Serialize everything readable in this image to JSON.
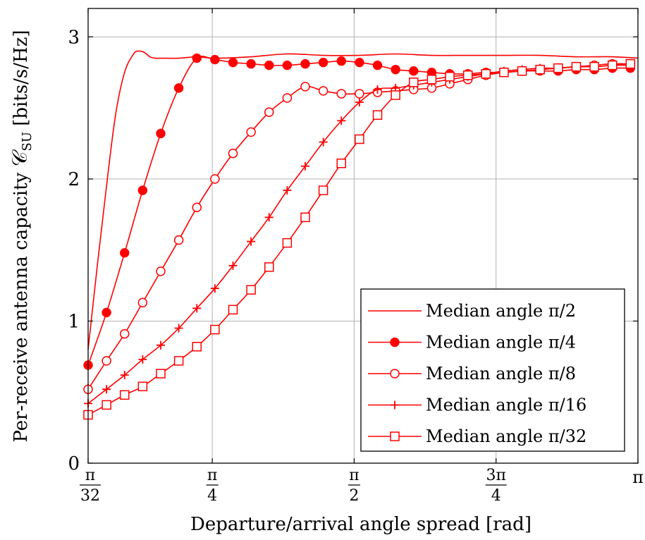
{
  "chart_data": {
    "type": "line",
    "xlabel": "Departure/arrival angle spread [rad]",
    "ylabel": "Per-receive antenna capacity 𝒞SU [bits/s/Hz]",
    "ylabel_parts": {
      "before": "Per-receive antenna capacity ",
      "symbol": "𝒞",
      "subscript": "SU",
      "after": " [bits/s/Hz]"
    },
    "xlim": [
      0.0982,
      3.1416
    ],
    "ylim": [
      0,
      3.2
    ],
    "xticks": [
      {
        "value": 0.0982,
        "numerator": "π",
        "denominator": "32"
      },
      {
        "value": 0.7854,
        "numerator": "π",
        "denominator": "4"
      },
      {
        "value": 1.5708,
        "numerator": "π",
        "denominator": "2"
      },
      {
        "value": 2.3562,
        "numerator": "3π",
        "denominator": "4"
      },
      {
        "value": 3.1416,
        "numerator": "π",
        "denominator": ""
      }
    ],
    "yticks": [
      0,
      1,
      2,
      3
    ],
    "grid": true,
    "color": "#ff0000",
    "legend_position": "lower-right",
    "series": [
      {
        "name": "Median angle π/2",
        "marker": "none",
        "x": [
          0.0982,
          0.15,
          0.2,
          0.25,
          0.3,
          0.35,
          0.38,
          0.41,
          0.44,
          0.47,
          0.5,
          0.6,
          0.7,
          0.8,
          1.0,
          1.2,
          1.4,
          1.6,
          1.8,
          2.0,
          2.2,
          2.4,
          2.6,
          2.8,
          3.0,
          3.1416
        ],
        "y": [
          0.8,
          1.4,
          1.95,
          2.45,
          2.75,
          2.88,
          2.9,
          2.89,
          2.86,
          2.85,
          2.85,
          2.85,
          2.86,
          2.85,
          2.86,
          2.88,
          2.87,
          2.87,
          2.88,
          2.87,
          2.87,
          2.87,
          2.87,
          2.86,
          2.86,
          2.85
        ]
      },
      {
        "name": "Median angle π/4",
        "marker": "filled-circle",
        "x": [
          0.0982,
          0.2,
          0.3,
          0.4,
          0.5,
          0.6,
          0.7,
          0.8,
          0.9,
          1.0,
          1.1,
          1.2,
          1.3,
          1.4,
          1.5,
          1.6,
          1.7,
          1.8,
          1.9,
          2.0,
          2.1,
          2.2,
          2.3,
          2.4,
          2.5,
          2.6,
          2.7,
          2.8,
          2.9,
          3.0,
          3.1
        ],
        "y": [
          0.69,
          1.06,
          1.48,
          1.92,
          2.32,
          2.64,
          2.85,
          2.84,
          2.82,
          2.81,
          2.8,
          2.8,
          2.81,
          2.82,
          2.83,
          2.82,
          2.8,
          2.77,
          2.76,
          2.75,
          2.74,
          2.74,
          2.75,
          2.75,
          2.76,
          2.76,
          2.76,
          2.77,
          2.77,
          2.78,
          2.78
        ]
      },
      {
        "name": "Median angle π/8",
        "marker": "open-circle",
        "x": [
          0.0982,
          0.2,
          0.3,
          0.4,
          0.5,
          0.6,
          0.7,
          0.8,
          0.9,
          1.0,
          1.1,
          1.2,
          1.3,
          1.4,
          1.5,
          1.6,
          1.7,
          1.8,
          1.9,
          2.0,
          2.1,
          2.2,
          2.3,
          2.4,
          2.5,
          2.6,
          2.7,
          2.8,
          2.9,
          3.0,
          3.1
        ],
        "y": [
          0.52,
          0.72,
          0.91,
          1.13,
          1.35,
          1.57,
          1.8,
          2.0,
          2.18,
          2.33,
          2.47,
          2.57,
          2.65,
          2.62,
          2.6,
          2.6,
          2.61,
          2.62,
          2.63,
          2.64,
          2.67,
          2.7,
          2.73,
          2.75,
          2.76,
          2.77,
          2.78,
          2.79,
          2.8,
          2.81,
          2.81
        ]
      },
      {
        "name": "Median angle π/16",
        "marker": "plus",
        "x": [
          0.0982,
          0.2,
          0.3,
          0.4,
          0.5,
          0.6,
          0.7,
          0.8,
          0.9,
          1.0,
          1.1,
          1.2,
          1.3,
          1.4,
          1.5,
          1.6,
          1.7,
          1.8,
          1.9,
          2.0,
          2.1,
          2.2,
          2.3,
          2.4,
          2.5,
          2.6,
          2.7,
          2.8,
          2.9,
          3.0,
          3.1
        ],
        "y": [
          0.42,
          0.52,
          0.62,
          0.73,
          0.83,
          0.95,
          1.09,
          1.23,
          1.39,
          1.56,
          1.73,
          1.92,
          2.09,
          2.26,
          2.41,
          2.54,
          2.63,
          2.64,
          2.66,
          2.68,
          2.7,
          2.72,
          2.74,
          2.76,
          2.77,
          2.78,
          2.78,
          2.79,
          2.79,
          2.8,
          2.8
        ]
      },
      {
        "name": "Median angle π/32",
        "marker": "open-square",
        "x": [
          0.0982,
          0.2,
          0.3,
          0.4,
          0.5,
          0.6,
          0.7,
          0.8,
          0.9,
          1.0,
          1.1,
          1.2,
          1.3,
          1.4,
          1.5,
          1.6,
          1.7,
          1.8,
          1.9,
          2.0,
          2.1,
          2.2,
          2.3,
          2.4,
          2.5,
          2.6,
          2.7,
          2.8,
          2.9,
          3.0,
          3.1
        ],
        "y": [
          0.34,
          0.41,
          0.48,
          0.54,
          0.63,
          0.72,
          0.82,
          0.94,
          1.08,
          1.22,
          1.38,
          1.55,
          1.73,
          1.92,
          2.11,
          2.28,
          2.45,
          2.59,
          2.68,
          2.7,
          2.72,
          2.73,
          2.74,
          2.75,
          2.76,
          2.77,
          2.78,
          2.79,
          2.79,
          2.8,
          2.81
        ]
      }
    ]
  }
}
